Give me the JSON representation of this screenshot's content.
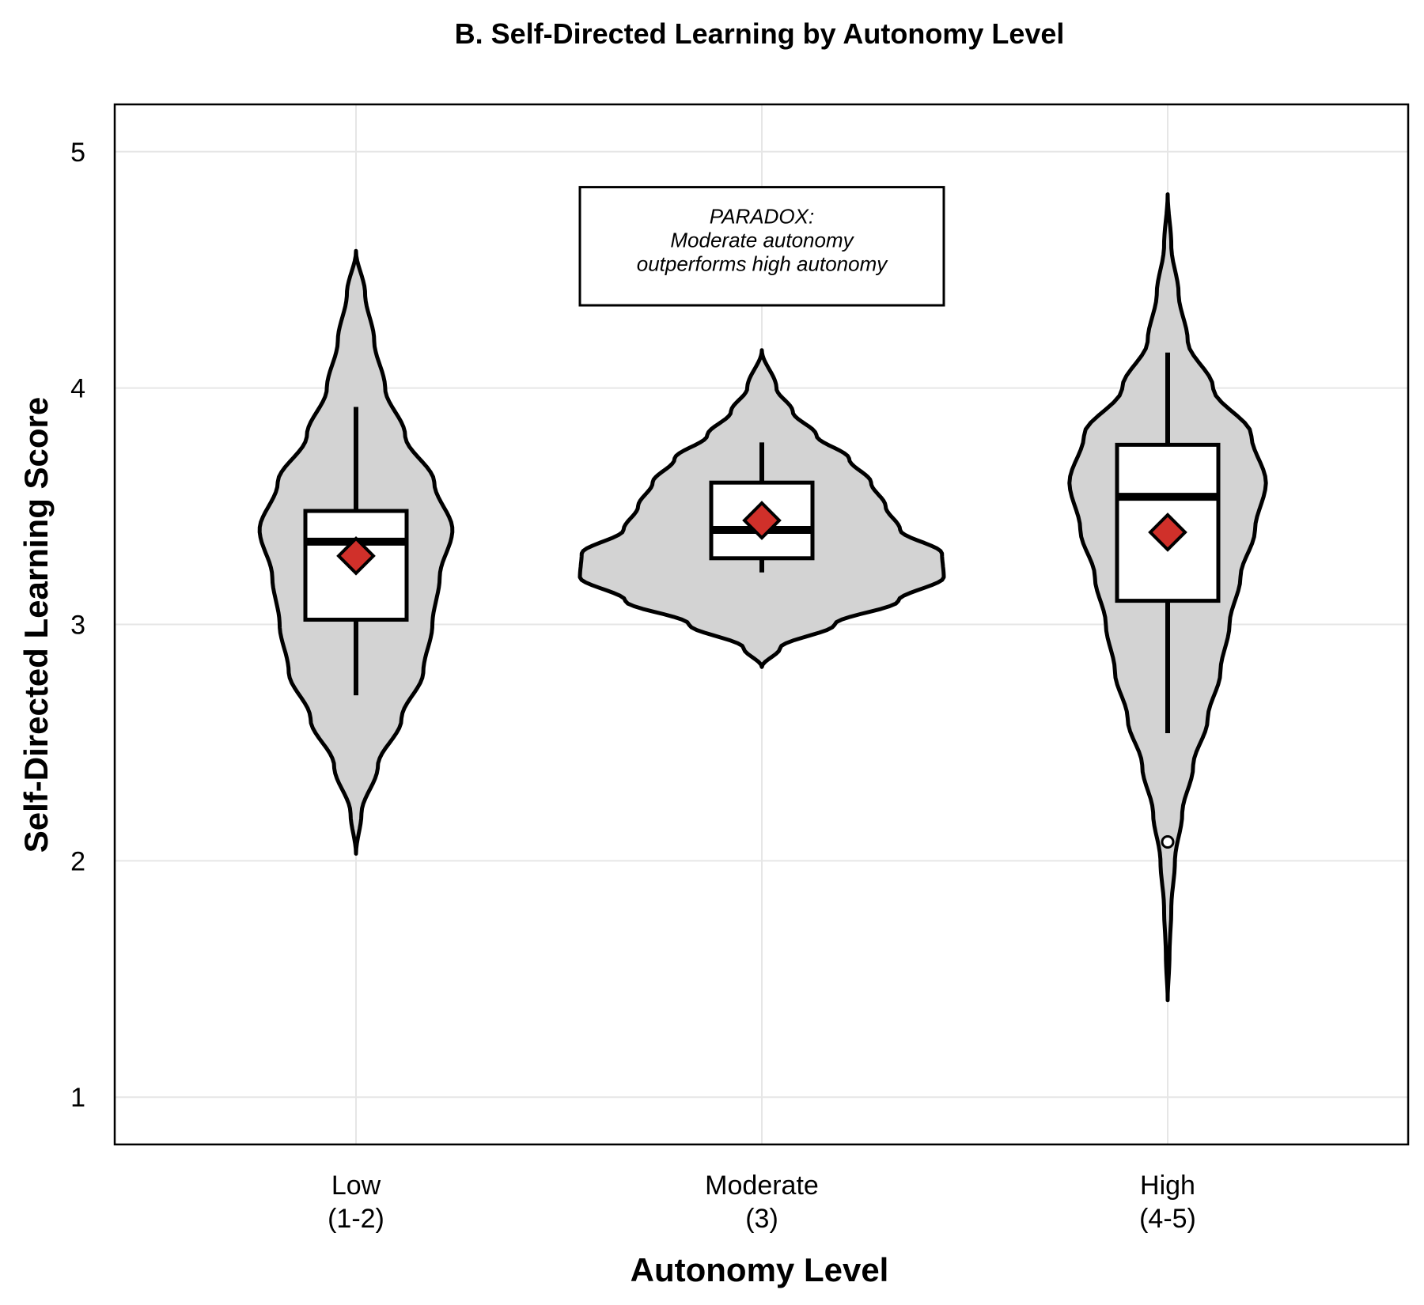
{
  "chart_data": {
    "type": "violin",
    "title": "B. Self-Directed Learning by Autonomy Level",
    "xlabel": "Autonomy Level",
    "ylabel": "Self-Directed Learning Score",
    "ylim": [
      0.8,
      5.2
    ],
    "yticks": [
      1,
      2,
      3,
      4,
      5
    ],
    "grid": true,
    "legend": "none",
    "categories": [
      {
        "line1": "Low",
        "line2": "(1-2)"
      },
      {
        "line1": "Moderate",
        "line2": "(3)"
      },
      {
        "line1": "High",
        "line2": "(4-5)"
      }
    ],
    "groups": [
      {
        "violin_min": 2.03,
        "violin_max": 4.58,
        "profile": [
          [
            2.03,
            0.0
          ],
          [
            2.2,
            0.03
          ],
          [
            2.4,
            0.12
          ],
          [
            2.6,
            0.25
          ],
          [
            2.8,
            0.37
          ],
          [
            3.0,
            0.42
          ],
          [
            3.2,
            0.46
          ],
          [
            3.4,
            0.53
          ],
          [
            3.6,
            0.43
          ],
          [
            3.8,
            0.27
          ],
          [
            4.0,
            0.16
          ],
          [
            4.2,
            0.1
          ],
          [
            4.4,
            0.05
          ],
          [
            4.58,
            0.0
          ]
        ],
        "whisker_low": 2.7,
        "q1": 3.02,
        "median": 3.35,
        "q3": 3.48,
        "whisker_high": 3.92,
        "mean": 3.29,
        "outliers": []
      },
      {
        "violin_min": 2.82,
        "violin_max": 4.16,
        "profile": [
          [
            2.82,
            0.0
          ],
          [
            2.9,
            0.1
          ],
          [
            3.0,
            0.4
          ],
          [
            3.1,
            0.75
          ],
          [
            3.2,
            1.0
          ],
          [
            3.3,
            0.99
          ],
          [
            3.4,
            0.76
          ],
          [
            3.5,
            0.68
          ],
          [
            3.6,
            0.6
          ],
          [
            3.7,
            0.48
          ],
          [
            3.8,
            0.3
          ],
          [
            3.9,
            0.17
          ],
          [
            4.0,
            0.08
          ],
          [
            4.16,
            0.0
          ]
        ],
        "whisker_low": 3.22,
        "q1": 3.28,
        "median": 3.4,
        "q3": 3.6,
        "whisker_high": 3.77,
        "mean": 3.44,
        "outliers": []
      },
      {
        "violin_min": 1.41,
        "violin_max": 4.82,
        "profile": [
          [
            1.41,
            0.0
          ],
          [
            1.6,
            0.01
          ],
          [
            1.8,
            0.02
          ],
          [
            2.0,
            0.04
          ],
          [
            2.2,
            0.08
          ],
          [
            2.4,
            0.14
          ],
          [
            2.6,
            0.22
          ],
          [
            2.8,
            0.29
          ],
          [
            3.0,
            0.34
          ],
          [
            3.2,
            0.4
          ],
          [
            3.4,
            0.48
          ],
          [
            3.6,
            0.54
          ],
          [
            3.8,
            0.46
          ],
          [
            4.0,
            0.25
          ],
          [
            4.2,
            0.11
          ],
          [
            4.4,
            0.06
          ],
          [
            4.6,
            0.02
          ],
          [
            4.82,
            0.0
          ]
        ],
        "whisker_low": 2.54,
        "q1": 3.1,
        "median": 3.54,
        "q3": 3.76,
        "whisker_high": 4.15,
        "mean": 3.39,
        "outliers": [
          2.08
        ]
      }
    ],
    "annotation": {
      "lines": [
        "PARADOX:",
        "Moderate autonomy",
        "outperforms high autonomy"
      ],
      "y_top": 4.85,
      "y_bottom": 4.35
    },
    "colors": {
      "violin_fill": "#d3d3d3",
      "box_fill": "#ffffff",
      "outline": "#000000",
      "mean_marker": "#d0302a",
      "grid": "#e6e6e6"
    }
  }
}
